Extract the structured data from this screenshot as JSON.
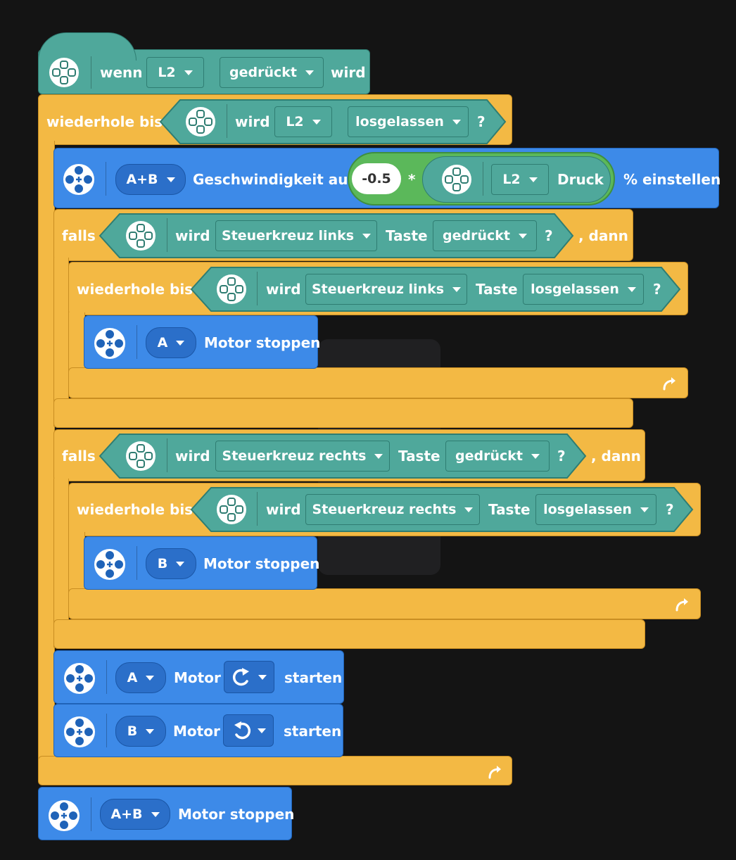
{
  "hat": {
    "prefix": "wenn",
    "port": "L2",
    "state": "gedrückt",
    "suffix": "wird"
  },
  "loop_main": {
    "label": "wiederhole bis",
    "cond": {
      "word": "wird",
      "port": "L2",
      "state": "losgelassen",
      "q": "?"
    }
  },
  "speed": {
    "motor": "A+B",
    "label": "Geschwindigkeit auf",
    "value": "-0.5",
    "op": "*",
    "port": "L2",
    "press": "Druck",
    "suffix": "% einstellen"
  },
  "if_left": {
    "label": "falls",
    "word": "wird",
    "button": "Steuerkreuz links",
    "taste": "Taste",
    "state": "gedrückt",
    "q": "?",
    "then": ", dann",
    "loop": {
      "label": "wiederhole bis",
      "word": "wird",
      "button": "Steuerkreuz links",
      "taste": "Taste",
      "state": "losgelassen",
      "q": "?"
    },
    "stop": {
      "motor": "A",
      "label": "Motor stoppen"
    }
  },
  "if_right": {
    "label": "falls",
    "word": "wird",
    "button": "Steuerkreuz rechts",
    "taste": "Taste",
    "state": "gedrückt",
    "q": "?",
    "then": ", dann",
    "loop": {
      "label": "wiederhole bis",
      "word": "wird",
      "button": "Steuerkreuz rechts",
      "taste": "Taste",
      "state": "losgelassen",
      "q": "?"
    },
    "stop": {
      "motor": "B",
      "label": "Motor stoppen"
    }
  },
  "start_a": {
    "motor": "A",
    "label": "Motor",
    "direction": "clockwise",
    "suffix": "starten"
  },
  "start_b": {
    "motor": "B",
    "label": "Motor",
    "direction": "counterclockwise",
    "suffix": "starten"
  },
  "final_stop": {
    "motor": "A+B",
    "label": "Motor stoppen"
  },
  "colors": {
    "events": "#4fa89b",
    "control": "#f3b944",
    "motor": "#3d8ae8",
    "operator": "#5bb85a",
    "background": "#141414"
  }
}
